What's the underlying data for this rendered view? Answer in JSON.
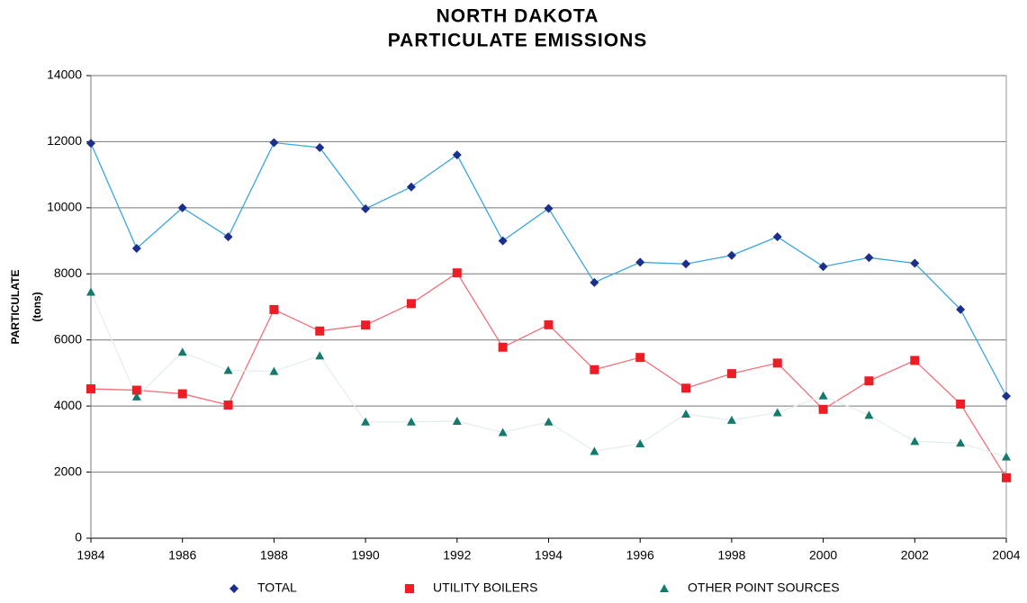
{
  "chart_data": {
    "type": "line",
    "title": [
      "NORTH DAKOTA",
      "PARTICULATE EMISSIONS"
    ],
    "ylabel": [
      "PARTICULATE",
      "(tons)"
    ],
    "x": [
      1984,
      1985,
      1986,
      1987,
      1988,
      1989,
      1990,
      1991,
      1992,
      1993,
      1994,
      1995,
      1996,
      1997,
      1998,
      1999,
      2000,
      2001,
      2002,
      2003,
      2004
    ],
    "xlim": [
      1984,
      2004
    ],
    "xticks": [
      1984,
      1986,
      1988,
      1990,
      1992,
      1994,
      1996,
      1998,
      2000,
      2002,
      2004
    ],
    "ylim": [
      0,
      14000
    ],
    "yticks": [
      0,
      2000,
      4000,
      6000,
      8000,
      10000,
      12000,
      14000
    ],
    "grid": true,
    "legend": "bottom",
    "series": [
      {
        "name": "TOTAL",
        "color": "#1c2f8c",
        "line_color": "#3aa6dd",
        "marker": "diamond",
        "values": [
          11950,
          8770,
          10000,
          9120,
          11970,
          11820,
          9970,
          10630,
          11600,
          9000,
          9980,
          7740,
          8350,
          8300,
          8560,
          9120,
          8220,
          8490,
          8320,
          6920,
          4300
        ]
      },
      {
        "name": "UTILITY BOILERS",
        "color": "#ee1c25",
        "line_color": "#f0707a",
        "marker": "square",
        "values": [
          4520,
          4480,
          4370,
          4030,
          6920,
          6270,
          6450,
          7100,
          8030,
          5780,
          6460,
          5100,
          5470,
          4540,
          4980,
          5300,
          3900,
          4760,
          5380,
          4060,
          1830
        ]
      },
      {
        "name": "OTHER POINT SOURCES",
        "color": "#137a6c",
        "line_color": "#e4efee",
        "marker": "triangle",
        "values": [
          7450,
          4280,
          5630,
          5080,
          5050,
          5520,
          3520,
          3520,
          3540,
          3200,
          3520,
          2630,
          2860,
          3760,
          3570,
          3800,
          4310,
          3720,
          2930,
          2880,
          2460
        ]
      }
    ]
  }
}
